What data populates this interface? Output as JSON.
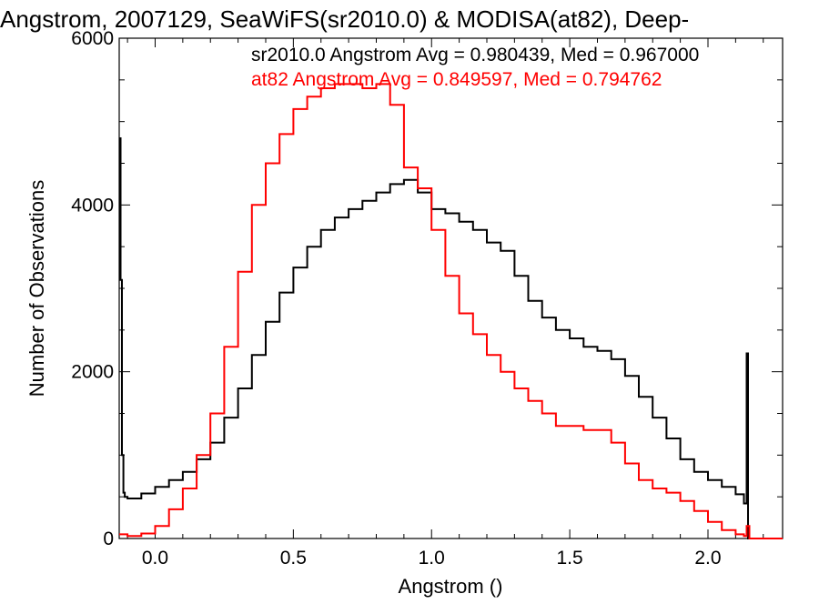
{
  "chart_data": {
    "type": "line",
    "step": true,
    "title": "Angstrom, 2007129, SeaWiFS(sr2010.0) & MODISA(at82), Deep-",
    "xlabel": "Angstrom ()",
    "ylabel": "Number of Observations",
    "xlim": [
      -0.13,
      2.27
    ],
    "ylim": [
      0,
      6000
    ],
    "x_ticks": [
      0.0,
      0.5,
      1.0,
      1.5,
      2.0
    ],
    "x_tick_labels": [
      "0.0",
      "0.5",
      "1.0",
      "1.5",
      "2.0"
    ],
    "y_ticks": [
      0,
      2000,
      4000,
      6000
    ],
    "y_tick_labels": [
      "0",
      "2000",
      "4000",
      "6000"
    ],
    "grid": false,
    "legend_placement": "top-right",
    "series": [
      {
        "name": "sr2010.0 Angstrom Avg = 0.980439, Med = 0.967000",
        "color": "#000000",
        "x": [
          -0.13,
          -0.125,
          -0.12,
          -0.115,
          -0.11,
          -0.1,
          -0.05,
          0.0,
          0.05,
          0.1,
          0.15,
          0.2,
          0.25,
          0.3,
          0.35,
          0.4,
          0.45,
          0.5,
          0.55,
          0.6,
          0.65,
          0.7,
          0.75,
          0.8,
          0.85,
          0.9,
          0.95,
          1.0,
          1.05,
          1.1,
          1.15,
          1.2,
          1.25,
          1.3,
          1.35,
          1.4,
          1.45,
          1.5,
          1.55,
          1.6,
          1.65,
          1.7,
          1.75,
          1.8,
          1.85,
          1.9,
          1.95,
          2.0,
          2.05,
          2.1,
          2.13,
          2.14,
          2.145,
          2.15,
          2.2,
          2.27
        ],
        "y": [
          4800,
          3100,
          1000,
          550,
          500,
          480,
          540,
          620,
          700,
          800,
          950,
          1150,
          1450,
          1800,
          2200,
          2600,
          2950,
          3250,
          3500,
          3700,
          3850,
          3950,
          4050,
          4150,
          4250,
          4300,
          4150,
          3950,
          3900,
          3800,
          3700,
          3550,
          3450,
          3150,
          2850,
          2650,
          2500,
          2400,
          2300,
          2250,
          2150,
          1950,
          1700,
          1450,
          1200,
          950,
          800,
          700,
          620,
          530,
          420,
          2220,
          0,
          0,
          0,
          0
        ]
      },
      {
        "name": "at82 Angstrom Avg = 0.849597, Med = 0.794762",
        "color": "#ff0000",
        "x": [
          -0.13,
          -0.1,
          -0.05,
          0.0,
          0.05,
          0.1,
          0.15,
          0.2,
          0.25,
          0.3,
          0.35,
          0.4,
          0.45,
          0.5,
          0.55,
          0.6,
          0.65,
          0.7,
          0.75,
          0.8,
          0.85,
          0.9,
          0.95,
          1.0,
          1.05,
          1.1,
          1.15,
          1.2,
          1.25,
          1.3,
          1.35,
          1.4,
          1.45,
          1.5,
          1.55,
          1.6,
          1.65,
          1.7,
          1.75,
          1.8,
          1.85,
          1.9,
          1.95,
          2.0,
          2.05,
          2.1,
          2.13,
          2.14,
          2.15,
          2.2,
          2.27
        ],
        "y": [
          50,
          30,
          60,
          150,
          350,
          600,
          1000,
          1500,
          2300,
          3200,
          4000,
          4500,
          4850,
          5150,
          5300,
          5400,
          5450,
          5450,
          5400,
          5450,
          5200,
          4450,
          4200,
          3700,
          3150,
          2700,
          2450,
          2200,
          2000,
          1800,
          1650,
          1500,
          1350,
          1350,
          1300,
          1300,
          1150,
          900,
          700,
          600,
          550,
          450,
          330,
          200,
          100,
          50,
          30,
          150,
          0,
          0,
          0
        ]
      }
    ]
  }
}
